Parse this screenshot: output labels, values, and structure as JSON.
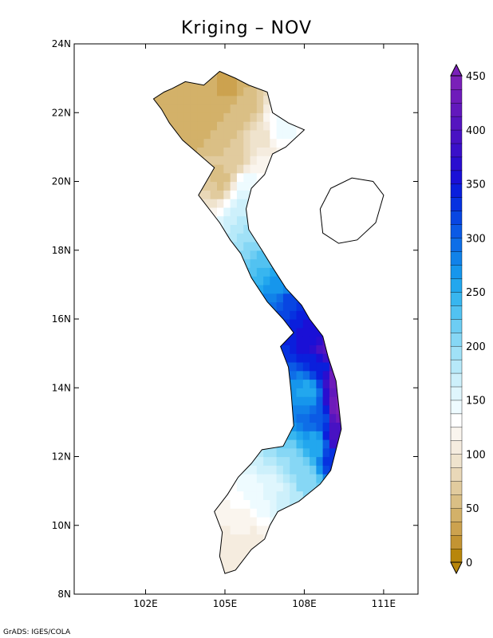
{
  "title": "Kriging – NOV",
  "credit": "GrADS: IGES/COLA",
  "map": {
    "lon_range": [
      99.3,
      112.3
    ],
    "lat_range": [
      8,
      24
    ],
    "x_ticks": [
      "102E",
      "105E",
      "108E",
      "111E"
    ],
    "x_tick_values": [
      102,
      105,
      108,
      111
    ],
    "y_ticks": [
      "8N",
      "10N",
      "12N",
      "14N",
      "16N",
      "18N",
      "20N",
      "22N",
      "24N"
    ],
    "y_tick_values": [
      8,
      10,
      12,
      14,
      16,
      18,
      20,
      22,
      24
    ]
  },
  "colorbar": {
    "min": 0,
    "max": 450,
    "labels": [
      "0",
      "50",
      "100",
      "150",
      "200",
      "250",
      "300",
      "350",
      "400",
      "450"
    ],
    "label_values": [
      0,
      50,
      100,
      150,
      200,
      250,
      300,
      350,
      400,
      450
    ],
    "colors": [
      "#b8860b",
      "#c39433",
      "#cca24f",
      "#d3b169",
      "#dabf85",
      "#e1cb9e",
      "#e9d8b8",
      "#efe3cd",
      "#f5ecdf",
      "#faf5ee",
      "#ffffff",
      "#eefbff",
      "#dff6fd",
      "#cdf0fb",
      "#b7e9f9",
      "#a0e1f7",
      "#86d7f5",
      "#6dcdf3",
      "#52c2f1",
      "#38b6ef",
      "#22a7ee",
      "#1696ec",
      "#1182e9",
      "#0e6ee7",
      "#0b5ae5",
      "#0846e2",
      "#0632e0",
      "#0a1fdc",
      "#1a10d6",
      "#2a0ecf",
      "#3a10c9",
      "#4812c3",
      "#5515bf",
      "#6218bc",
      "#6e1bba",
      "#7a20b8"
    ]
  },
  "precip_field": [
    {
      "lat": 22.8,
      "lon": 103.8,
      "v": 40
    },
    {
      "lat": 22.6,
      "lon": 105.0,
      "v": 35
    },
    {
      "lat": 22.2,
      "lon": 104.2,
      "v": 45
    },
    {
      "lat": 22.0,
      "lon": 105.5,
      "v": 55
    },
    {
      "lat": 21.5,
      "lon": 103.5,
      "v": 40
    },
    {
      "lat": 21.3,
      "lon": 104.8,
      "v": 50
    },
    {
      "lat": 21.0,
      "lon": 106.2,
      "v": 90
    },
    {
      "lat": 21.4,
      "lon": 107.0,
      "v": 140
    },
    {
      "lat": 20.5,
      "lon": 105.3,
      "v": 70
    },
    {
      "lat": 20.6,
      "lon": 106.3,
      "v": 115
    },
    {
      "lat": 20.0,
      "lon": 104.8,
      "v": 60
    },
    {
      "lat": 19.8,
      "lon": 105.7,
      "v": 150
    },
    {
      "lat": 19.0,
      "lon": 105.6,
      "v": 175
    },
    {
      "lat": 18.4,
      "lon": 106.1,
      "v": 200
    },
    {
      "lat": 17.6,
      "lon": 106.6,
      "v": 235
    },
    {
      "lat": 17.0,
      "lon": 107.0,
      "v": 270
    },
    {
      "lat": 16.5,
      "lon": 107.5,
      "v": 320
    },
    {
      "lat": 16.0,
      "lon": 108.0,
      "v": 350
    },
    {
      "lat": 15.5,
      "lon": 108.3,
      "v": 360
    },
    {
      "lat": 15.0,
      "lon": 108.8,
      "v": 410
    },
    {
      "lat": 14.5,
      "lon": 108.5,
      "v": 340
    },
    {
      "lat": 14.2,
      "lon": 109.1,
      "v": 430
    },
    {
      "lat": 13.8,
      "lon": 108.0,
      "v": 260
    },
    {
      "lat": 13.3,
      "lon": 109.2,
      "v": 440
    },
    {
      "lat": 13.0,
      "lon": 108.4,
      "v": 300
    },
    {
      "lat": 12.5,
      "lon": 109.1,
      "v": 400
    },
    {
      "lat": 12.2,
      "lon": 108.3,
      "v": 250
    },
    {
      "lat": 11.8,
      "lon": 108.9,
      "v": 330
    },
    {
      "lat": 11.6,
      "lon": 107.5,
      "v": 200
    },
    {
      "lat": 11.2,
      "lon": 108.0,
      "v": 210
    },
    {
      "lat": 11.0,
      "lon": 106.8,
      "v": 160
    },
    {
      "lat": 10.6,
      "lon": 107.3,
      "v": 175
    },
    {
      "lat": 10.5,
      "lon": 106.0,
      "v": 140
    },
    {
      "lat": 10.0,
      "lon": 105.6,
      "v": 120
    },
    {
      "lat": 9.6,
      "lon": 105.8,
      "v": 110
    },
    {
      "lat": 9.2,
      "lon": 105.2,
      "v": 100
    }
  ],
  "coast_outline": [
    [
      103.0,
      22.7
    ],
    [
      103.5,
      22.9
    ],
    [
      104.2,
      22.8
    ],
    [
      104.8,
      23.2
    ],
    [
      105.4,
      23.0
    ],
    [
      105.9,
      22.8
    ],
    [
      106.6,
      22.6
    ],
    [
      106.8,
      22.0
    ],
    [
      107.4,
      21.7
    ],
    [
      108.0,
      21.5
    ],
    [
      107.3,
      21.0
    ],
    [
      106.8,
      20.8
    ],
    [
      106.5,
      20.2
    ],
    [
      106.0,
      19.8
    ],
    [
      105.8,
      19.2
    ],
    [
      105.9,
      18.6
    ],
    [
      106.4,
      18.0
    ],
    [
      106.8,
      17.5
    ],
    [
      107.3,
      16.9
    ],
    [
      107.9,
      16.4
    ],
    [
      108.2,
      16.0
    ],
    [
      108.7,
      15.5
    ],
    [
      108.9,
      14.9
    ],
    [
      109.2,
      14.2
    ],
    [
      109.3,
      13.5
    ],
    [
      109.4,
      12.8
    ],
    [
      109.2,
      12.2
    ],
    [
      109.0,
      11.6
    ],
    [
      108.6,
      11.2
    ],
    [
      107.8,
      10.7
    ],
    [
      107.0,
      10.4
    ],
    [
      106.7,
      10.0
    ],
    [
      106.5,
      9.6
    ],
    [
      106.0,
      9.3
    ],
    [
      105.4,
      8.7
    ],
    [
      105.0,
      8.6
    ],
    [
      104.8,
      9.1
    ],
    [
      104.9,
      9.8
    ],
    [
      104.6,
      10.4
    ],
    [
      105.1,
      10.9
    ],
    [
      105.5,
      11.4
    ],
    [
      106.0,
      11.8
    ],
    [
      106.4,
      12.2
    ],
    [
      107.2,
      12.3
    ],
    [
      107.6,
      12.9
    ],
    [
      107.5,
      13.9
    ],
    [
      107.4,
      14.6
    ],
    [
      107.1,
      15.2
    ],
    [
      107.6,
      15.6
    ],
    [
      107.2,
      16.0
    ],
    [
      106.6,
      16.5
    ],
    [
      106.0,
      17.2
    ],
    [
      105.6,
      17.9
    ],
    [
      105.2,
      18.3
    ],
    [
      104.8,
      18.8
    ],
    [
      104.4,
      19.2
    ],
    [
      104.0,
      19.6
    ],
    [
      104.3,
      20.0
    ],
    [
      104.6,
      20.4
    ],
    [
      104.0,
      20.8
    ],
    [
      103.4,
      21.2
    ],
    [
      102.9,
      21.7
    ],
    [
      102.6,
      22.1
    ],
    [
      102.3,
      22.4
    ],
    [
      102.7,
      22.6
    ],
    [
      103.0,
      22.7
    ]
  ],
  "island_hainan": [
    [
      108.6,
      19.2
    ],
    [
      109.0,
      19.8
    ],
    [
      109.8,
      20.1
    ],
    [
      110.6,
      20.0
    ],
    [
      111.0,
      19.6
    ],
    [
      110.7,
      18.8
    ],
    [
      110.0,
      18.3
    ],
    [
      109.3,
      18.2
    ],
    [
      108.7,
      18.5
    ],
    [
      108.6,
      19.2
    ]
  ]
}
